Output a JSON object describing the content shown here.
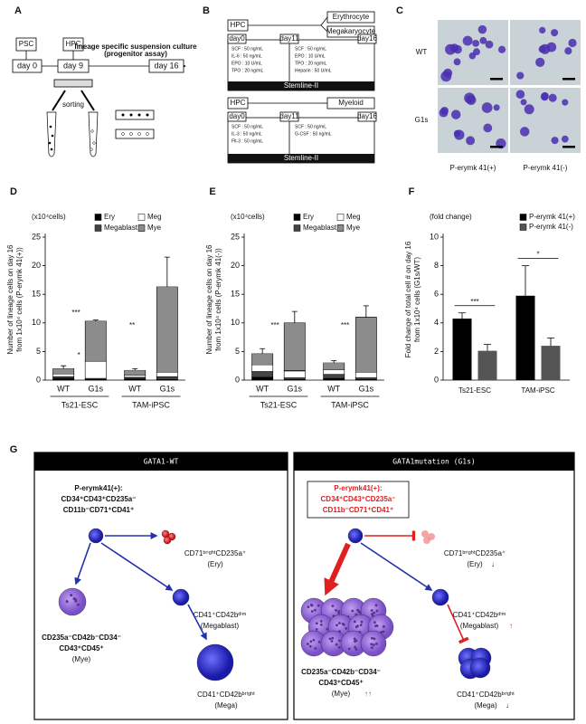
{
  "panel_A": {
    "letter": "A",
    "psc": "PSC",
    "hpc": "HPC",
    "day0": "day 0",
    "day9": "day 9",
    "day16": "day 16",
    "culture": "lineage specific suspension culture",
    "assay": "(progenitor assay)",
    "sorting": "sorting"
  },
  "panel_B": {
    "letter": "B",
    "top": {
      "start": "HPC",
      "outputs": [
        "Erythrocyte",
        "Megakaryocyte"
      ],
      "days": [
        "day0",
        "day11",
        "day16"
      ],
      "phase1": [
        "SCF : 50 ng/mL",
        "IL-6 : 50 ng/mL",
        "EPO : 10 U/mL",
        "TPO : 20 ng/mL"
      ],
      "phase2": [
        "SCF : 50 ng/mL",
        "EPO : 10 U/mL",
        "TPO : 20 ng/mL",
        "Heparin : 50 U/mL"
      ],
      "medium": "Stemline-II"
    },
    "bottom": {
      "start": "HPC",
      "outputs": [
        "Myeloid"
      ],
      "days": [
        "day0",
        "day11",
        "day16"
      ],
      "phase1": [
        "SCF : 50 ng/mL",
        "IL-3 : 50 ng/mL",
        "Flt-3 : 50 ng/mL"
      ],
      "phase2": [
        "SCF : 50 ng/mL",
        "G-CSF : 50 ng/mL"
      ],
      "medium": "Stemline-II"
    }
  },
  "panel_C": {
    "letter": "C",
    "rows": [
      "WT",
      "G1s"
    ],
    "columns": [
      "P-erymk 41(+)",
      "P-erymk 41(-)"
    ]
  },
  "chart_data": [
    {
      "panel": "D",
      "type": "stacked-bar",
      "unit_label": "(x10⁴cells)",
      "y_label": [
        "Number of lineage cells on day 16",
        "from 1x10⁴ cells (P-erymk 41(+))"
      ],
      "groups": [
        "Ts21-ESC",
        "TAM-iPSC"
      ],
      "categories": [
        "WT",
        "G1s",
        "WT",
        "G1s"
      ],
      "series": [
        {
          "name": "Ery",
          "color": "#000000",
          "values": [
            0.3,
            0.1,
            0.2,
            0.1
          ]
        },
        {
          "name": "Megablast",
          "color": "#444444",
          "values": [
            0.3,
            0.2,
            0.3,
            0.5
          ]
        },
        {
          "name": "Meg",
          "color": "#ffffff",
          "values": [
            0.5,
            3.0,
            0.4,
            0.8
          ]
        },
        {
          "name": "Mye",
          "color": "#ffffff",
          "pattern": "horizontal-lines",
          "values": [
            0.9,
            7.0,
            0.8,
            14.9
          ]
        }
      ],
      "errors": [
        0.5,
        0.2,
        0.3,
        5.2
      ],
      "annotations": [
        "***",
        "*",
        "**"
      ],
      "ylim": [
        0,
        25
      ],
      "yticks": [
        0,
        5,
        10,
        15,
        20,
        25
      ]
    },
    {
      "panel": "E",
      "type": "stacked-bar",
      "unit_label": "(x10⁴cells)",
      "y_label": [
        "Number of lineage cells on day 16",
        "from 1x10⁴ cells (P-erymk 41(-))"
      ],
      "groups": [
        "Ts21-ESC",
        "TAM-iPSC"
      ],
      "categories": [
        "WT",
        "G1s",
        "WT",
        "G1s"
      ],
      "series": [
        {
          "name": "Ery",
          "color": "#000000",
          "values": [
            0.5,
            0.1,
            0.3,
            0.1
          ]
        },
        {
          "name": "Megablast",
          "color": "#444444",
          "values": [
            1.0,
            0.3,
            0.7,
            0.3
          ]
        },
        {
          "name": "Meg",
          "color": "#ffffff",
          "values": [
            1.2,
            1.2,
            0.8,
            1.0
          ]
        },
        {
          "name": "Mye",
          "color": "#ffffff",
          "pattern": "horizontal-lines",
          "values": [
            1.9,
            8.4,
            1.2,
            9.6
          ]
        }
      ],
      "errors": [
        0.9,
        2.0,
        0.4,
        2.0
      ],
      "annotations": [
        "***",
        "***"
      ],
      "ylim": [
        0,
        25
      ],
      "yticks": [
        0,
        5,
        10,
        15,
        20,
        25
      ]
    },
    {
      "panel": "F",
      "type": "bar",
      "unit_label": "(fold change)",
      "y_label": [
        "Fold change of total cell # on day 16",
        "from 1x10⁴ cells (G1s/WT)"
      ],
      "categories": [
        "Ts21-ESC",
        "TAM-iPSC"
      ],
      "series": [
        {
          "name": "P-erymk 41(+)",
          "color": "#000000",
          "values": [
            4.3,
            5.9
          ],
          "errors": [
            0.4,
            2.1
          ]
        },
        {
          "name": "P-erymk 41(-)",
          "color": "#555555",
          "values": [
            2.05,
            2.4
          ],
          "errors": [
            0.45,
            0.55
          ]
        }
      ],
      "annotations": [
        "***",
        "*"
      ],
      "legend": "upper right",
      "ylim": [
        0,
        10
      ],
      "yticks": [
        0,
        2,
        4,
        6,
        8,
        10
      ]
    }
  ],
  "panel_G": {
    "letter": "G",
    "left": {
      "title": "GATA1-WT",
      "source": [
        "P-erymk41(+):",
        "CD34⁺CD43⁺CD235a⁻",
        "CD11b⁻CD71⁺CD41⁺"
      ],
      "ery": [
        "CD71ᵇʳⁱᵍʰᵗCD235a⁺",
        "(Ery)"
      ],
      "megablast": [
        "CD41⁺CD42bᵈⁱᵐ",
        "(Megablast)"
      ],
      "mye": [
        "CD235a⁻CD42b⁻CD34⁻",
        "CD43⁺CD45⁺",
        "(Mye)"
      ],
      "mega": [
        "CD41⁺CD42bᵇʳⁱᵍʰᵗ",
        "(Mega)"
      ]
    },
    "right": {
      "title": "GATA1mutation (G1s)",
      "source": [
        "P-erymk41(+):",
        "CD34⁺CD43⁺CD235a⁻",
        "CD11b⁻CD71⁺CD41⁺"
      ],
      "ery": [
        "CD71ᵇʳⁱᵍʰᵗCD235a⁺",
        "(Ery)"
      ],
      "megablast": [
        "CD41⁺CD42bᵈⁱᵐ",
        "(Megablast)"
      ],
      "mye": [
        "CD235a⁻CD42b⁻CD34⁻",
        "CD43⁺CD45⁺",
        "(Mye)"
      ],
      "mega": [
        "CD41⁺CD42bᵇʳⁱᵍʰᵗ",
        "(Mega)"
      ],
      "changes": {
        "ery": "↓",
        "megablast": "↑",
        "mye": "↑↑",
        "mega": "↓"
      }
    }
  }
}
